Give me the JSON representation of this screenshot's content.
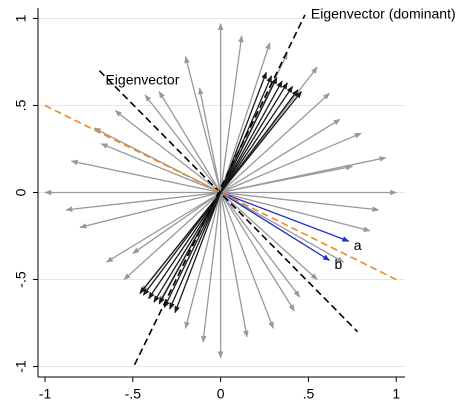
{
  "chart_data": {
    "type": "vector",
    "xlim": [
      -1.04,
      1.05
    ],
    "ylim": [
      -1.06,
      1.06
    ],
    "xticks": [
      -1,
      {
        "value": -0.5,
        "label": "-.5"
      },
      0,
      {
        "value": 0.5,
        "label": ".5"
      },
      1
    ],
    "yticks": [
      -1,
      {
        "value": -0.5,
        "label": "-.5"
      },
      0,
      {
        "value": 0.5,
        "label": ".5"
      },
      1
    ],
    "grid": true,
    "series": [
      {
        "color": "#999999",
        "x": [
          1.0,
          0.94,
          0.8,
          0.62,
          0.55,
          0.38,
          0.28,
          0.12,
          0,
          -0.2,
          -0.35,
          -0.43,
          -0.6,
          -0.72,
          -0.85,
          -1.0,
          -0.88,
          -0.8,
          -0.65,
          -0.55,
          -0.45,
          -0.35,
          -0.2,
          -0.1,
          0,
          0.15,
          0.3,
          0.45,
          0.55,
          0.7,
          0.85,
          0.9,
          0.75,
          0.68,
          -0.68,
          -0.5,
          0.42,
          -0.12
        ],
        "y": [
          0,
          0.2,
          0.34,
          0.57,
          0.72,
          0.8,
          0.86,
          0.9,
          0.97,
          0.78,
          0.58,
          0.56,
          0.47,
          0.37,
          0.18,
          0,
          -0.1,
          -0.2,
          -0.4,
          -0.5,
          -0.57,
          -0.63,
          -0.78,
          -0.86,
          -0.95,
          -0.83,
          -0.78,
          -0.6,
          -0.5,
          -0.4,
          -0.22,
          -0.1,
          0.15,
          0.42,
          0.28,
          -0.35,
          -0.68,
          0.6
        ]
      },
      {
        "color": "#1a1a1a",
        "x": [
          0.26,
          0.29,
          0.32,
          0.35,
          0.38,
          0.41,
          0.44,
          0.46,
          -0.26,
          -0.29,
          -0.32,
          -0.35,
          -0.38,
          -0.41,
          -0.44,
          -0.46
        ],
        "y": [
          0.69,
          0.67,
          0.66,
          0.64,
          0.63,
          0.61,
          0.59,
          0.58,
          -0.69,
          -0.67,
          -0.66,
          -0.64,
          -0.63,
          -0.61,
          -0.59,
          -0.58
        ]
      },
      {
        "color": "#1f2fd0",
        "x": [
          0.73,
          0.62
        ],
        "y": [
          -0.28,
          -0.39
        ],
        "labels": [
          "a",
          "b"
        ]
      }
    ],
    "lines": [
      {
        "color": "#000000",
        "x": [
          -0.49,
          0.48
        ],
        "y": [
          -0.99,
          1.02
        ],
        "label": "Eigenvector (dominant)"
      },
      {
        "color": "#000000",
        "x": [
          -0.69,
          0.78
        ],
        "y": [
          0.7,
          -0.8
        ],
        "label": "Eigenvector"
      },
      {
        "color": "#f28a1e",
        "x": [
          -1.0,
          1.0
        ],
        "y": [
          0.5,
          -0.5
        ]
      }
    ]
  }
}
